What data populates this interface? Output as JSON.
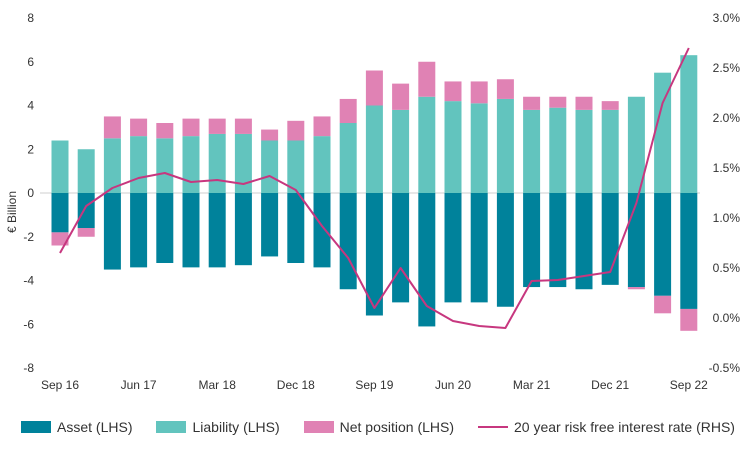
{
  "chart_data": {
    "type": "bar+line",
    "ylabel_left": "€ Billion",
    "ylim_left": [
      -8,
      8
    ],
    "yticks_left": [
      "8",
      "6",
      "4",
      "2",
      "0",
      "-2",
      "-4",
      "-6",
      "-8"
    ],
    "ylim_right": [
      -0.5,
      3.0
    ],
    "yticks_right": [
      "3.0%",
      "2.5%",
      "2.0%",
      "1.5%",
      "1.0%",
      "0.5%",
      "0.0%",
      "-0.5%"
    ],
    "x_tick_labels": [
      "Sep 16",
      "Jun 17",
      "Mar 18",
      "Dec 18",
      "Sep 19",
      "Jun 20",
      "Mar 21",
      "Dec 21",
      "Sep 22"
    ],
    "x_tick_positions": [
      0,
      3,
      6,
      9,
      12,
      15,
      18,
      21,
      24
    ],
    "colors": {
      "asset": "#00829b",
      "liability": "#62c4be",
      "net_position": "#e082b4",
      "rate": "#c7377f",
      "axis_text": "#333333"
    },
    "series": [
      {
        "name": "Asset (LHS)",
        "values": [
          -1.8,
          -1.6,
          -3.5,
          -3.4,
          -3.2,
          -3.4,
          -3.4,
          -3.3,
          -2.9,
          -3.2,
          -3.4,
          -4.4,
          -5.6,
          -5.0,
          -6.1,
          -5.0,
          -5.0,
          -5.2,
          -4.3,
          -4.3,
          -4.4,
          -4.2,
          -4.3,
          -4.7,
          -5.3
        ]
      },
      {
        "name": "Liability (LHS)",
        "values": [
          2.4,
          2.0,
          2.5,
          2.6,
          2.5,
          2.6,
          2.7,
          2.7,
          2.4,
          2.4,
          2.6,
          3.2,
          4.0,
          3.8,
          4.4,
          4.2,
          4.1,
          4.3,
          3.8,
          3.9,
          3.8,
          3.8,
          4.4,
          5.5,
          6.3
        ]
      },
      {
        "name": "Net position (LHS)",
        "values": [
          -0.6,
          -0.4,
          1.0,
          0.8,
          0.7,
          0.8,
          0.7,
          0.7,
          0.5,
          0.9,
          0.9,
          1.1,
          1.6,
          1.2,
          1.6,
          0.9,
          1.0,
          0.9,
          0.6,
          0.5,
          0.6,
          0.4,
          -0.1,
          -0.8,
          -1.0
        ]
      },
      {
        "name": "20 year risk free interest rate (RHS)",
        "values": [
          0.65,
          1.12,
          1.3,
          1.4,
          1.45,
          1.36,
          1.38,
          1.34,
          1.42,
          1.28,
          0.92,
          0.6,
          0.1,
          0.5,
          0.12,
          -0.03,
          -0.08,
          -0.1,
          0.37,
          0.38,
          0.42,
          0.46,
          1.15,
          2.15,
          2.7
        ]
      }
    ]
  }
}
